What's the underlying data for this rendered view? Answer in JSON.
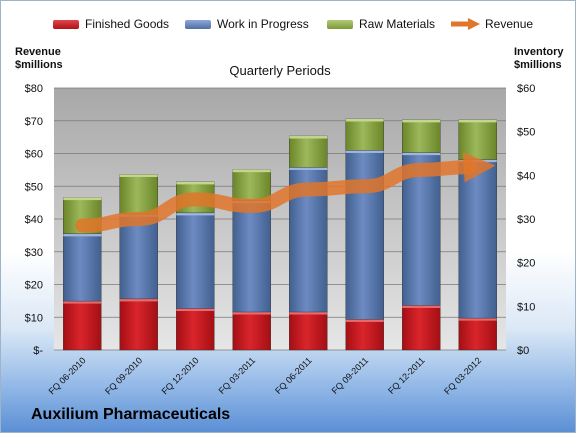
{
  "legend": {
    "finished_goods": "Finished Goods",
    "work_in_progress": "Work in Progress",
    "raw_materials": "Raw Materials",
    "revenue": "Revenue"
  },
  "left_axis_title": "Revenue\n$millions",
  "right_axis_title": "Inventory\n$millions",
  "company": "Auxilium Pharmaceuticals",
  "chart_data": {
    "type": "bar",
    "title": "Quarterly Periods",
    "categories": [
      "FQ 06-2010",
      "FQ 09-2010",
      "FQ 12-2010",
      "FQ 03-2011",
      "FQ 06-2011",
      "FQ 09-2011",
      "FQ 12-2011",
      "FQ 03-2012"
    ],
    "stacked": true,
    "series": [
      {
        "name": "Finished Goods",
        "axis": "right",
        "values": [
          11.2,
          11.7,
          9.5,
          8.7,
          8.7,
          7.0,
          10.2,
          7.3
        ],
        "color": "#c0151b"
      },
      {
        "name": "Work in Progress",
        "axis": "right",
        "values": [
          15.4,
          19.4,
          21.9,
          25.5,
          33.1,
          38.7,
          35.0,
          36.3
        ],
        "color": "#4f6fa5"
      },
      {
        "name": "Raw Materials",
        "axis": "right",
        "values": [
          8.3,
          9.1,
          7.1,
          7.1,
          7.2,
          7.2,
          7.5,
          9.1
        ],
        "color": "#7d9a35"
      },
      {
        "name": "Revenue",
        "axis": "left",
        "type": "line",
        "values": [
          38,
          40,
          46,
          44,
          49,
          50,
          55,
          56
        ],
        "color": "#e0762a"
      }
    ],
    "left_axis": {
      "ylim": [
        0,
        80
      ],
      "ticks": [
        "$-",
        "$10",
        "$20",
        "$30",
        "$40",
        "$50",
        "$60",
        "$70",
        "$80"
      ]
    },
    "right_axis": {
      "ylim": [
        0,
        60
      ],
      "ticks": [
        "$0",
        "$10",
        "$20",
        "$30",
        "$40",
        "$50",
        "$60"
      ]
    },
    "grid": true,
    "legend_position": "top"
  }
}
